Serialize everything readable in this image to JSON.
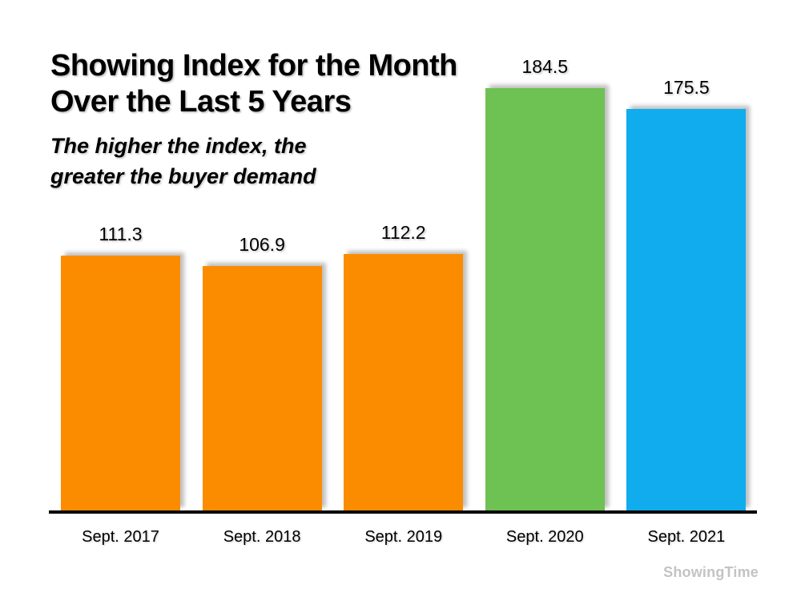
{
  "title": {
    "line1": "Showing Index for the Month",
    "line2": "Over the Last 5 Years"
  },
  "subtitle": {
    "line1": "The higher the index, the",
    "line2": "greater the buyer demand"
  },
  "watermark": "ShowingTime",
  "colors": {
    "bar_orange": "#FB8C00",
    "bar_green": "#6EC153",
    "bar_blue": "#10ACEE",
    "axis": "#000000",
    "text": "#000000",
    "watermark": "#C3C3C3",
    "shadow": "#C0C0C0"
  },
  "chart_data": {
    "type": "bar",
    "title": "Showing Index for the Month Over the Last 5 Years",
    "subtitle": "The higher the index, the greater the buyer demand",
    "categories": [
      "Sept. 2017",
      "Sept. 2018",
      "Sept. 2019",
      "Sept. 2020",
      "Sept. 2021"
    ],
    "values": [
      111.3,
      106.9,
      112.2,
      184.5,
      175.5
    ],
    "value_labels": [
      "111.3",
      "106.9",
      "112.2",
      "184.5",
      "175.5"
    ],
    "bar_colors": [
      "#FB8C00",
      "#FB8C00",
      "#FB8C00",
      "#6EC153",
      "#10ACEE"
    ],
    "xlabel": "",
    "ylabel": "",
    "ylim": [
      0,
      220
    ],
    "baseline_value": 0,
    "grid": false,
    "legend": false,
    "value_labels_position": "above-bars"
  }
}
